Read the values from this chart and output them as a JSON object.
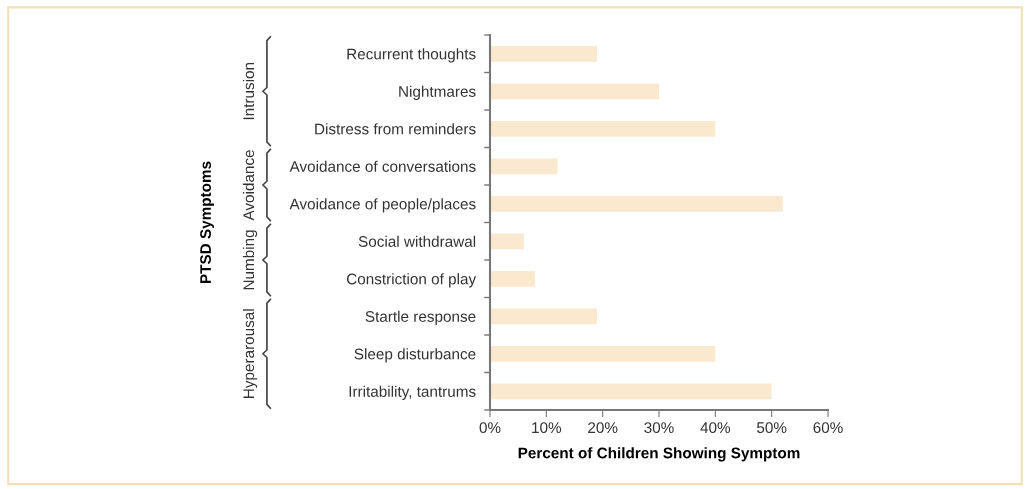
{
  "chart_data": {
    "type": "bar",
    "orientation": "horizontal",
    "xlabel": "Percent of Children Showing Symptom",
    "ylabel": "PTSD Symptoms",
    "categories": [
      "Recurrent thoughts",
      "Nightmares",
      "Distress from reminders",
      "Avoidance of conversations",
      "Avoidance of people/places",
      "Social withdrawal",
      "Constriction of play",
      "Startle response",
      "Sleep disturbance",
      "Irritability, tantrums"
    ],
    "values": [
      19,
      30,
      40,
      12,
      52,
      6,
      8,
      19,
      40,
      50
    ],
    "color": "#fae9cf",
    "xlim": [
      0,
      60
    ],
    "xticks": [
      {
        "value": 0,
        "label": "0%"
      },
      {
        "value": 10,
        "label": "10%"
      },
      {
        "value": 20,
        "label": "20%"
      },
      {
        "value": 30,
        "label": "30%"
      },
      {
        "value": 40,
        "label": "40%"
      },
      {
        "value": 50,
        "label": "50%"
      },
      {
        "value": 60,
        "label": "60%"
      }
    ],
    "annotations": [
      "Intrusion",
      "Avoidance",
      "Numbing",
      "Hyperarousal"
    ],
    "grid": false
  }
}
